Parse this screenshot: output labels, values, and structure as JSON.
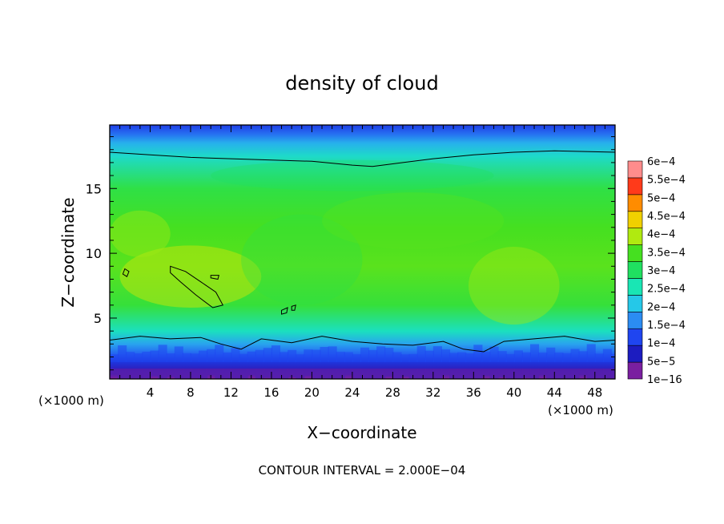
{
  "chart_data": {
    "type": "heatmap",
    "title": "density of cloud",
    "xlabel": "X−coordinate",
    "ylabel": "Z−coordinate",
    "x_unit_left": "(×1000 m)",
    "x_unit_right": "(×1000 m)",
    "xlim": [
      0,
      50
    ],
    "ylim": [
      0.3,
      19.9
    ],
    "x_ticks": [
      4,
      8,
      12,
      16,
      20,
      24,
      28,
      32,
      36,
      40,
      44,
      48
    ],
    "y_ticks": [
      5,
      10,
      15
    ],
    "footer": "CONTOUR INTERVAL = 2.000E−04",
    "colorbar": {
      "labels": [
        "1e−16",
        "5e−5",
        "1e−4",
        "1.5e−4",
        "2e−4",
        "2.5e−4",
        "3e−4",
        "3.5e−4",
        "4e−4",
        "4.5e−4",
        "5e−4",
        "5.5e−4",
        "6e−4"
      ],
      "values": [
        1e-16,
        5e-05,
        0.0001,
        0.00015,
        0.0002,
        0.00025,
        0.0003,
        0.00035,
        0.0004,
        0.00045,
        0.0005,
        0.00055,
        0.0006
      ],
      "colors": [
        "#7a1fa0",
        "#1c1cc0",
        "#1f45f0",
        "#2b8cf2",
        "#25c8e8",
        "#19e6b4",
        "#20e060",
        "#45e020",
        "#b0ea10",
        "#f0d000",
        "#ff8c00",
        "#ff3a1a",
        "#ff8c8c"
      ]
    },
    "contour_levels": [
      0.0002,
      0.0004
    ],
    "profile": {
      "z": [
        0.3,
        1.0,
        1.6,
        2.2,
        3.0,
        4.0,
        6.0,
        9.0,
        12.0,
        15.0,
        17.5,
        18.5,
        19.2,
        19.9
      ],
      "value": [
        1e-16,
        4e-05,
        8e-05,
        0.00012,
        0.00017,
        0.00024,
        0.00033,
        0.00036,
        0.00035,
        0.00032,
        0.00023,
        0.00018,
        0.00013,
        9e-05
      ]
    },
    "contour_top_z": [
      [
        0,
        17.8
      ],
      [
        4,
        17.6
      ],
      [
        8,
        17.4
      ],
      [
        12,
        17.3
      ],
      [
        16,
        17.2
      ],
      [
        20,
        17.1
      ],
      [
        24,
        16.8
      ],
      [
        26,
        16.7
      ],
      [
        28,
        16.9
      ],
      [
        32,
        17.3
      ],
      [
        36,
        17.6
      ],
      [
        40,
        17.8
      ],
      [
        44,
        17.9
      ],
      [
        50,
        17.8
      ]
    ],
    "contour_low_z": [
      [
        0,
        3.3
      ],
      [
        3,
        3.6
      ],
      [
        6,
        3.4
      ],
      [
        9,
        3.5
      ],
      [
        11,
        3.0
      ],
      [
        13,
        2.6
      ],
      [
        15,
        3.4
      ],
      [
        18,
        3.1
      ],
      [
        21,
        3.6
      ],
      [
        24,
        3.2
      ],
      [
        27,
        3.0
      ],
      [
        30,
        2.9
      ],
      [
        33,
        3.2
      ],
      [
        35,
        2.6
      ],
      [
        37,
        2.4
      ],
      [
        39,
        3.2
      ],
      [
        42,
        3.4
      ],
      [
        45,
        3.6
      ],
      [
        48,
        3.2
      ],
      [
        50,
        3.3
      ]
    ],
    "contour_high_blobs": [
      [
        [
          6.0,
          9.0
        ],
        [
          7.5,
          8.6
        ],
        [
          9.0,
          7.8
        ],
        [
          10.5,
          7.0
        ],
        [
          11.2,
          6.0
        ],
        [
          10.2,
          5.8
        ],
        [
          8.5,
          6.8
        ],
        [
          7.0,
          7.8
        ],
        [
          6.0,
          8.5
        ]
      ],
      [
        [
          1.5,
          8.8
        ],
        [
          1.9,
          8.6
        ],
        [
          1.7,
          8.2
        ],
        [
          1.3,
          8.4
        ]
      ],
      [
        [
          10.0,
          8.3
        ],
        [
          10.8,
          8.3
        ],
        [
          10.7,
          8.0
        ],
        [
          10.0,
          8.1
        ]
      ],
      [
        [
          17.0,
          5.6
        ],
        [
          17.6,
          5.8
        ],
        [
          17.5,
          5.4
        ],
        [
          17.0,
          5.3
        ]
      ],
      [
        [
          18.0,
          5.9
        ],
        [
          18.4,
          6.0
        ],
        [
          18.3,
          5.6
        ],
        [
          18.0,
          5.6
        ]
      ]
    ]
  }
}
